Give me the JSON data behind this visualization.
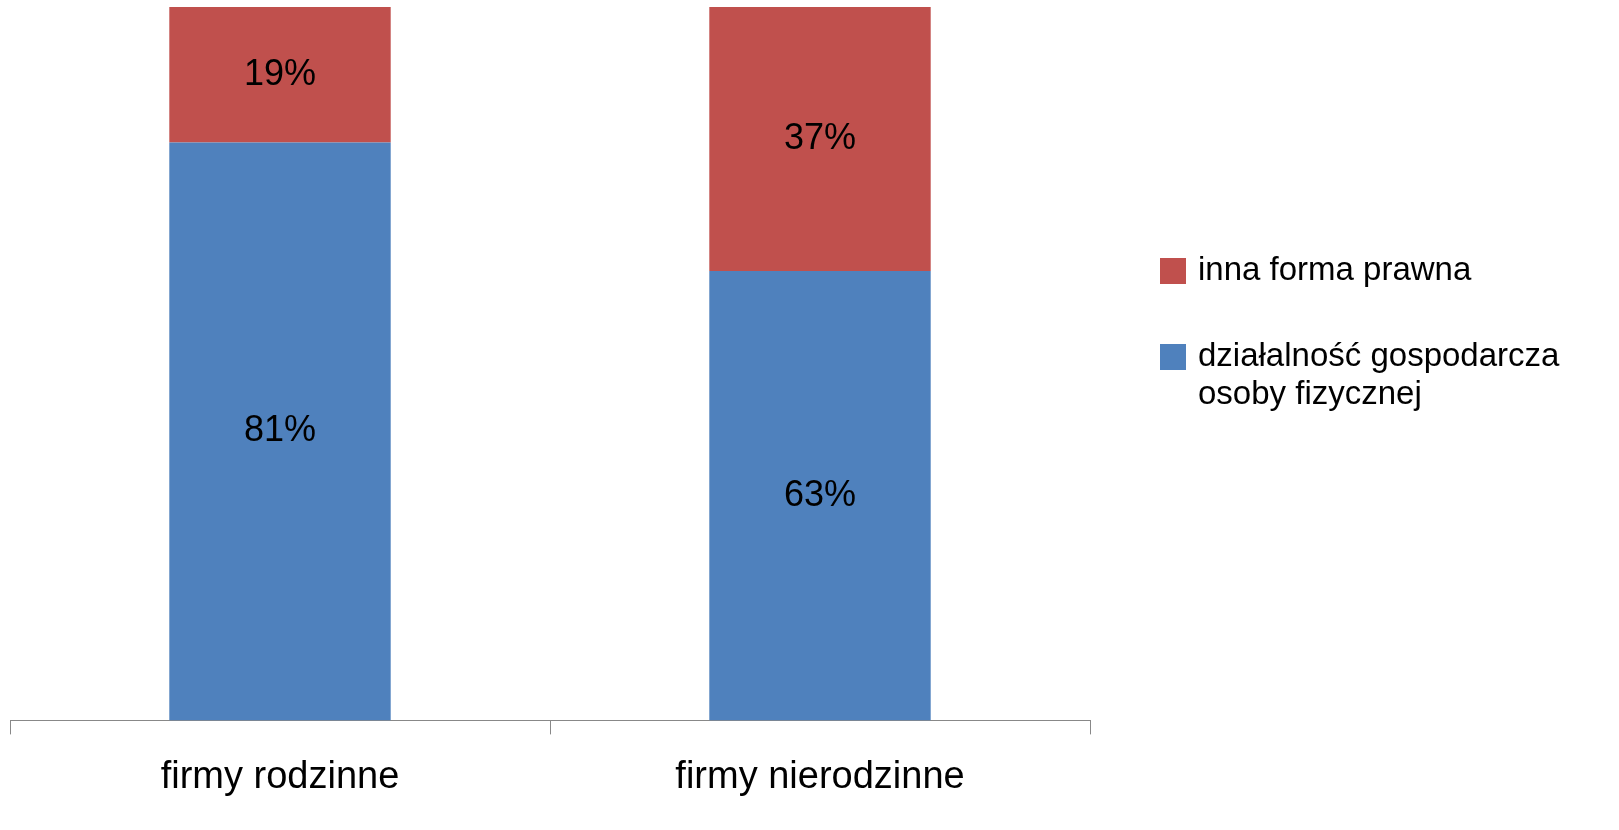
{
  "chart_data": {
    "type": "bar",
    "stacked": true,
    "categories": [
      "firmy rodzinne",
      "firmy nierodzinne"
    ],
    "series": [
      {
        "name": "działalność gospodarcza osoby fizycznej",
        "color": "#4f81bd",
        "values": [
          81,
          63
        ],
        "value_labels": [
          "81%",
          "63%"
        ]
      },
      {
        "name": "inna forma prawna",
        "color": "#c0504d",
        "values": [
          19,
          37
        ],
        "value_labels": [
          "19%",
          "37%"
        ]
      }
    ],
    "legend": "right"
  }
}
